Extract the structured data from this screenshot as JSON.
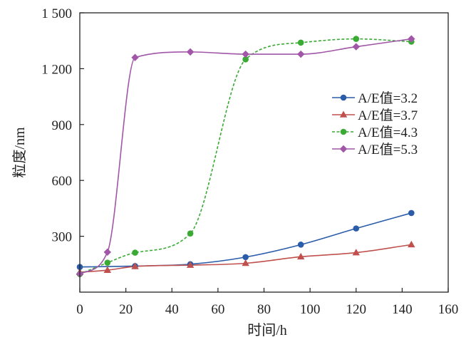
{
  "chart_data": {
    "type": "line",
    "title": "",
    "xlabel": "时间/h",
    "ylabel": "粒度/nm",
    "xlim": [
      0,
      160
    ],
    "ylim": [
      0,
      1500
    ],
    "x_ticks": [
      {
        "value": 0,
        "label": "0"
      },
      {
        "value": 20,
        "label": "20"
      },
      {
        "value": 40,
        "label": "40"
      },
      {
        "value": 60,
        "label": "60"
      },
      {
        "value": 80,
        "label": "80"
      },
      {
        "value": 100,
        "label": "100"
      },
      {
        "value": 120,
        "label": "120"
      },
      {
        "value": 140,
        "label": "140"
      },
      {
        "value": 160,
        "label": "160"
      }
    ],
    "y_ticks": [
      {
        "value": 300,
        "label": "300"
      },
      {
        "value": 600,
        "label": "600"
      },
      {
        "value": 900,
        "label": "900"
      },
      {
        "value": 1200,
        "label": "1 200"
      },
      {
        "value": 1500,
        "label": "1 500"
      }
    ],
    "grid": false,
    "legend_position": "right-middle",
    "series": [
      {
        "name": "A/E值=3.2",
        "color": "#2a5caa",
        "marker": "circle",
        "line_style": "solid",
        "x": [
          0,
          24,
          48,
          72,
          96,
          120,
          144
        ],
        "y": [
          135,
          140,
          150,
          188,
          255,
          342,
          425
        ]
      },
      {
        "name": "A/E值=3.7",
        "color": "#c0504d",
        "marker": "triangle",
        "line_style": "solid",
        "x": [
          0,
          12,
          24,
          48,
          72,
          96,
          120,
          144
        ],
        "y": [
          107,
          118,
          138,
          145,
          155,
          190,
          212,
          255
        ]
      },
      {
        "name": "A/E值=4.3",
        "color": "#3aaa35",
        "marker": "circle",
        "line_style": "dashed",
        "x": [
          0,
          12,
          24,
          48,
          72,
          96,
          120,
          144
        ],
        "y": [
          97,
          158,
          212,
          315,
          1250,
          1340,
          1360,
          1345
        ]
      },
      {
        "name": "A/E值=5.3",
        "color": "#a156a8",
        "marker": "diamond",
        "line_style": "solid",
        "x": [
          0,
          12,
          24,
          48,
          72,
          96,
          120,
          144
        ],
        "y": [
          98,
          215,
          1260,
          1290,
          1278,
          1278,
          1318,
          1360
        ]
      }
    ]
  }
}
